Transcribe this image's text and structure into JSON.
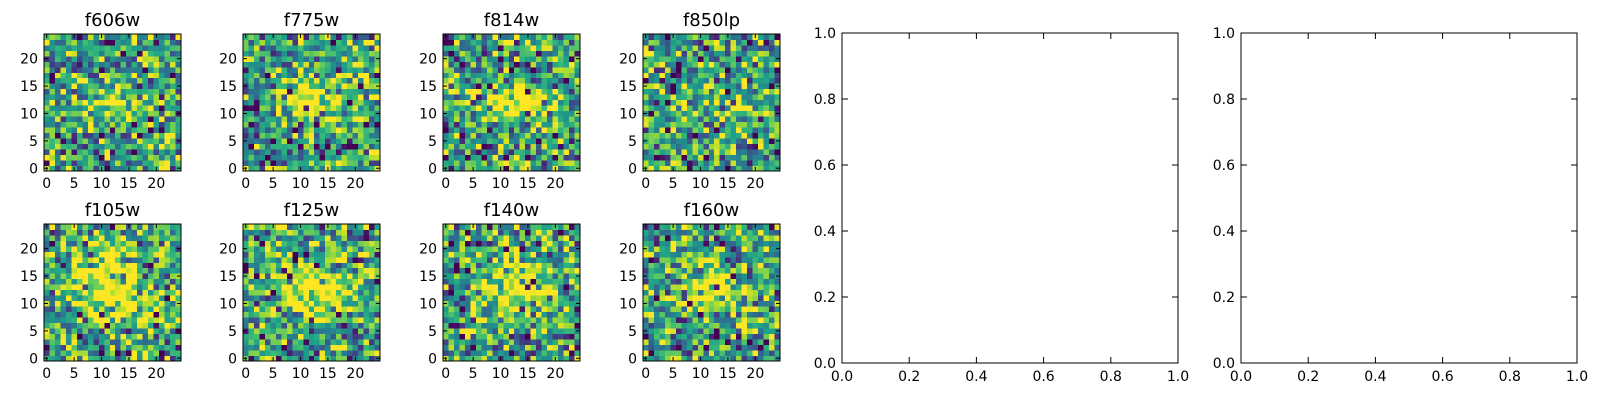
{
  "chart_data": [
    {
      "type": "heatmap",
      "title": "f606w",
      "colormap": "viridis",
      "shape": [
        25,
        25
      ],
      "xlim": [
        0,
        24
      ],
      "ylim": [
        0,
        24
      ],
      "xticks": [
        "0",
        "5",
        "10",
        "15",
        "20"
      ],
      "yticks": [
        "0",
        "5",
        "10",
        "15",
        "20"
      ],
      "grid": false,
      "feature": {
        "cx": 13,
        "cy": 12,
        "sx": 4,
        "sy": 2,
        "amp": 0.35
      }
    },
    {
      "type": "heatmap",
      "title": "f775w",
      "colormap": "viridis",
      "shape": [
        25,
        25
      ],
      "xlim": [
        0,
        24
      ],
      "ylim": [
        0,
        24
      ],
      "xticks": [
        "0",
        "5",
        "10",
        "15",
        "20"
      ],
      "yticks": [
        "0",
        "5",
        "10",
        "15",
        "20"
      ],
      "grid": false,
      "feature": {
        "cx": 13,
        "cy": 12,
        "sx": 4,
        "sy": 2.5,
        "amp": 0.45
      }
    },
    {
      "type": "heatmap",
      "title": "f814w",
      "colormap": "viridis",
      "shape": [
        25,
        25
      ],
      "xlim": [
        0,
        24
      ],
      "ylim": [
        0,
        24
      ],
      "xticks": [
        "0",
        "5",
        "10",
        "15",
        "20"
      ],
      "yticks": [
        "0",
        "5",
        "10",
        "15",
        "20"
      ],
      "grid": false,
      "feature": {
        "cx": 13,
        "cy": 12,
        "sx": 5,
        "sy": 2.5,
        "amp": 0.5
      }
    },
    {
      "type": "heatmap",
      "title": "f850lp",
      "colormap": "viridis",
      "shape": [
        25,
        25
      ],
      "xlim": [
        0,
        24
      ],
      "ylim": [
        0,
        24
      ],
      "xticks": [
        "0",
        "5",
        "10",
        "15",
        "20"
      ],
      "yticks": [
        "0",
        "5",
        "10",
        "15",
        "20"
      ],
      "grid": false,
      "feature": {
        "cx": 13,
        "cy": 12,
        "sx": 4,
        "sy": 2.5,
        "amp": 0.2
      }
    },
    {
      "type": "line",
      "title": "",
      "xlim": [
        0,
        1
      ],
      "ylim": [
        0,
        1
      ],
      "xticks": [
        "0.0",
        "0.2",
        "0.4",
        "0.6",
        "0.8",
        "1.0"
      ],
      "yticks": [
        "0.0",
        "0.2",
        "0.4",
        "0.6",
        "0.8",
        "1.0"
      ],
      "series": [],
      "grid": false
    },
    {
      "type": "line",
      "title": "",
      "xlim": [
        0,
        1
      ],
      "ylim": [
        0,
        1
      ],
      "xticks": [
        "0.0",
        "0.2",
        "0.4",
        "0.6",
        "0.8",
        "1.0"
      ],
      "yticks": [
        "0.0",
        "0.2",
        "0.4",
        "0.6",
        "0.8",
        "1.0"
      ],
      "series": [],
      "grid": false
    },
    {
      "type": "heatmap",
      "title": "f105w",
      "colormap": "viridis",
      "shape": [
        25,
        25
      ],
      "xlim": [
        0,
        24
      ],
      "ylim": [
        0,
        24
      ],
      "xticks": [
        "0",
        "5",
        "10",
        "15",
        "20"
      ],
      "yticks": [
        "0",
        "5",
        "10",
        "15",
        "20"
      ],
      "grid": false,
      "feature": {
        "cx": 12,
        "cy": 13,
        "sx": 5,
        "sy": 5,
        "amp": 0.55
      }
    },
    {
      "type": "heatmap",
      "title": "f125w",
      "colormap": "viridis",
      "shape": [
        25,
        25
      ],
      "xlim": [
        0,
        24
      ],
      "ylim": [
        0,
        24
      ],
      "xticks": [
        "0",
        "5",
        "10",
        "15",
        "20"
      ],
      "yticks": [
        "0",
        "5",
        "10",
        "15",
        "20"
      ],
      "grid": false,
      "feature": {
        "cx": 13,
        "cy": 13,
        "sx": 5,
        "sy": 4,
        "amp": 0.45
      }
    },
    {
      "type": "heatmap",
      "title": "f140w",
      "colormap": "viridis",
      "shape": [
        25,
        25
      ],
      "xlim": [
        0,
        24
      ],
      "ylim": [
        0,
        24
      ],
      "xticks": [
        "0",
        "5",
        "10",
        "15",
        "20"
      ],
      "yticks": [
        "0",
        "5",
        "10",
        "15",
        "20"
      ],
      "grid": false,
      "feature": {
        "cx": 12,
        "cy": 13,
        "sx": 5,
        "sy": 4,
        "amp": 0.45
      }
    },
    {
      "type": "heatmap",
      "title": "f160w",
      "colormap": "viridis",
      "shape": [
        25,
        25
      ],
      "xlim": [
        0,
        24
      ],
      "ylim": [
        0,
        24
      ],
      "xticks": [
        "0",
        "5",
        "10",
        "15",
        "20"
      ],
      "yticks": [
        "0",
        "5",
        "10",
        "15",
        "20"
      ],
      "grid": false,
      "feature": {
        "cx": 12,
        "cy": 13,
        "sx": 3.5,
        "sy": 3,
        "amp": 0.55
      }
    }
  ]
}
